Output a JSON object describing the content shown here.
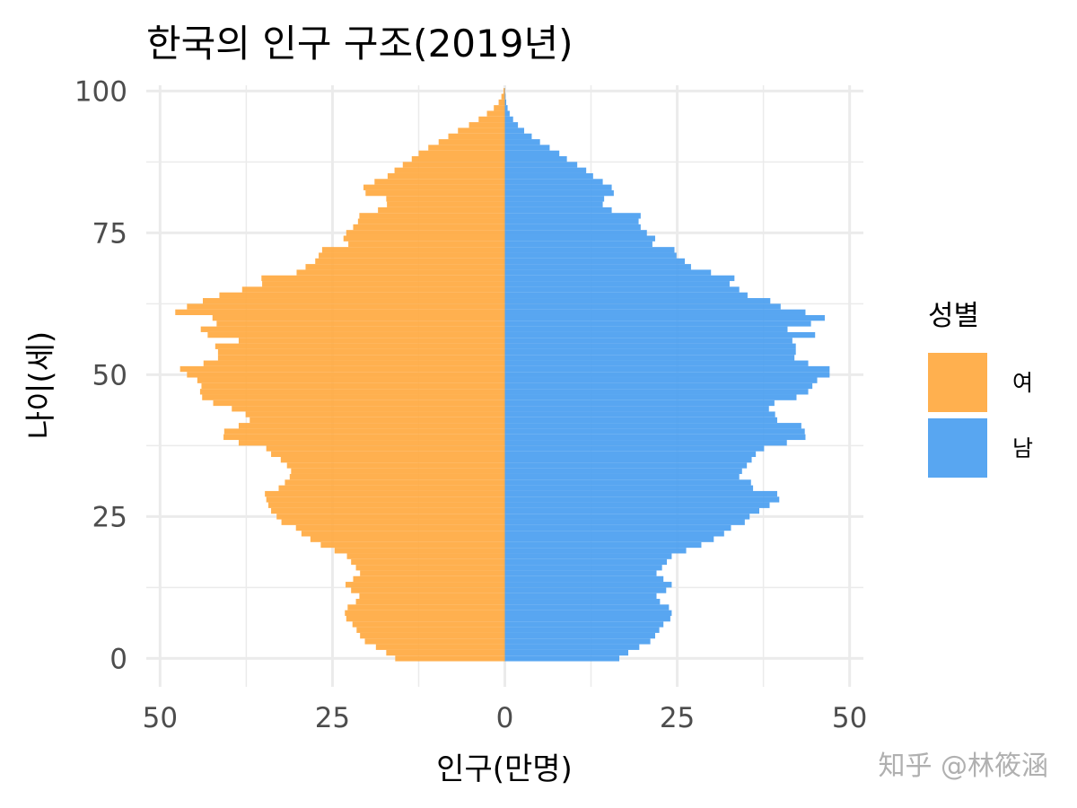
{
  "chart_data": {
    "type": "bar",
    "orientation": "horizontal",
    "layout": "population-pyramid",
    "title": "한국의 인구 구조(2019년)",
    "xlabel": "인구(만명)",
    "ylabel": "나이(세)",
    "xlim": [
      -52,
      52
    ],
    "ylim": [
      -5,
      101
    ],
    "x_ticks": [
      -50,
      -25,
      0,
      25,
      50
    ],
    "x_tick_labels": [
      "50",
      "25",
      "0",
      "25",
      "50"
    ],
    "y_ticks": [
      0,
      25,
      50,
      75,
      100
    ],
    "y_tick_labels": [
      "0",
      "25",
      "50",
      "75",
      "100"
    ],
    "grid": true,
    "legend": {
      "title": "성별",
      "position": "right",
      "entries": [
        {
          "label": "여",
          "color": "#FFA940"
        },
        {
          "label": "남",
          "color": "#4A9EF0"
        }
      ]
    },
    "ages": [
      0,
      1,
      2,
      3,
      4,
      5,
      6,
      7,
      8,
      9,
      10,
      11,
      12,
      13,
      14,
      15,
      16,
      17,
      18,
      19,
      20,
      21,
      22,
      23,
      24,
      25,
      26,
      27,
      28,
      29,
      30,
      31,
      32,
      33,
      34,
      35,
      36,
      37,
      38,
      39,
      40,
      41,
      42,
      43,
      44,
      45,
      46,
      47,
      48,
      49,
      50,
      51,
      52,
      53,
      54,
      55,
      56,
      57,
      58,
      59,
      60,
      61,
      62,
      63,
      64,
      65,
      66,
      67,
      68,
      69,
      70,
      71,
      72,
      73,
      74,
      75,
      76,
      77,
      78,
      79,
      80,
      81,
      82,
      83,
      84,
      85,
      86,
      87,
      88,
      89,
      90,
      91,
      92,
      93,
      94,
      95,
      96,
      97,
      98,
      99,
      100
    ],
    "series": [
      {
        "name": "여",
        "color": "#FFA940",
        "values": [
          15.9,
          17.2,
          18.7,
          20.3,
          21.0,
          21.5,
          22.1,
          23.0,
          23.2,
          22.8,
          21.6,
          21.1,
          22.3,
          23.1,
          22.0,
          21.0,
          21.6,
          22.3,
          22.9,
          24.7,
          26.7,
          28.2,
          29.5,
          30.3,
          32.4,
          33.1,
          33.9,
          34.3,
          34.6,
          34.8,
          32.8,
          31.9,
          31.2,
          31.0,
          31.6,
          32.5,
          33.9,
          34.6,
          38.6,
          40.8,
          40.7,
          38.6,
          37.0,
          37.6,
          39.6,
          42.3,
          43.9,
          44.2,
          44.0,
          44.6,
          46.1,
          47.1,
          43.7,
          41.6,
          41.6,
          42.0,
          38.6,
          43.1,
          44.1,
          41.8,
          42.4,
          47.8,
          46.1,
          43.8,
          41.4,
          38.1,
          35.2,
          35.3,
          30.2,
          28.9,
          27.5,
          27.0,
          26.5,
          22.7,
          23.4,
          23.0,
          22.0,
          21.3,
          21.1,
          18.4,
          17.1,
          17.2,
          20.2,
          20.5,
          18.9,
          17.0,
          16.0,
          14.8,
          13.5,
          12.5,
          11.1,
          9.6,
          8.2,
          6.8,
          5.2,
          3.8,
          2.6,
          1.6,
          0.9,
          0.5,
          0.2
        ]
      },
      {
        "name": "남",
        "color": "#4A9EF0",
        "values": [
          16.6,
          17.9,
          19.5,
          21.1,
          21.8,
          22.4,
          23.0,
          24.0,
          24.2,
          23.8,
          22.5,
          22.0,
          23.4,
          24.2,
          23.0,
          22.0,
          22.8,
          23.5,
          24.2,
          26.3,
          28.5,
          30.3,
          31.8,
          32.8,
          34.8,
          35.5,
          36.9,
          38.4,
          39.8,
          39.5,
          36.0,
          35.7,
          34.0,
          34.4,
          35.1,
          35.8,
          36.4,
          37.6,
          40.9,
          43.6,
          43.5,
          43.0,
          39.5,
          39.2,
          38.3,
          39.1,
          42.3,
          44.0,
          44.6,
          45.3,
          47.1,
          47.1,
          44.0,
          42.0,
          42.2,
          42.2,
          41.7,
          45.0,
          41.0,
          44.4,
          46.4,
          43.6,
          40.0,
          38.5,
          35.2,
          34.0,
          32.6,
          33.3,
          29.9,
          27.0,
          26.1,
          24.9,
          24.6,
          21.4,
          21.8,
          20.6,
          19.7,
          19.4,
          19.7,
          15.5,
          14.2,
          14.4,
          15.8,
          15.5,
          14.2,
          12.8,
          11.8,
          10.5,
          9.0,
          7.9,
          6.5,
          5.1,
          3.9,
          2.8,
          1.9,
          1.2,
          0.7,
          0.4,
          0.2,
          0.1,
          0.05
        ]
      }
    ]
  },
  "watermark": "知乎 @林筱涵"
}
